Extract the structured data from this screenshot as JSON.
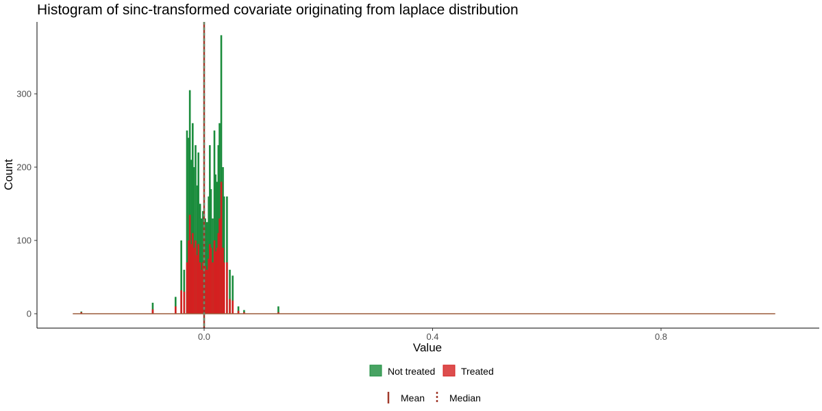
{
  "chart_data": {
    "type": "bar",
    "title": "Histogram of sinc-transformed covariate originating from laplace distribution",
    "xlabel": "Value",
    "ylabel": "Count",
    "xlim": [
      -0.29,
      1.02
    ],
    "ylim": [
      -20,
      395
    ],
    "x_ticks": [
      0.0,
      0.4,
      0.8
    ],
    "x_tick_labels": [
      "0.0",
      "0.4",
      "0.8"
    ],
    "y_ticks": [
      0,
      100,
      200,
      300
    ],
    "y_tick_labels": [
      "0",
      "100",
      "200",
      "300"
    ],
    "grid": false,
    "legend_position": "bottom",
    "series": [
      {
        "name": "Not treated",
        "color": "#1a8c3c",
        "x": [
          -0.215,
          -0.09,
          -0.05,
          -0.04,
          -0.035,
          -0.03,
          -0.027,
          -0.025,
          -0.022,
          -0.02,
          -0.018,
          -0.015,
          -0.012,
          -0.01,
          -0.007,
          -0.005,
          -0.002,
          0.002,
          0.005,
          0.008,
          0.01,
          0.012,
          0.015,
          0.018,
          0.02,
          0.023,
          0.025,
          0.027,
          0.03,
          0.033,
          0.035,
          0.04,
          0.045,
          0.05,
          0.06,
          0.07,
          0.13
        ],
        "values": [
          3,
          15,
          23,
          100,
          60,
          250,
          240,
          305,
          210,
          260,
          200,
          230,
          175,
          220,
          150,
          130,
          140,
          130,
          125,
          160,
          230,
          170,
          130,
          250,
          190,
          180,
          230,
          260,
          380,
          200,
          160,
          160,
          60,
          52,
          10,
          5,
          10
        ]
      },
      {
        "name": "Treated",
        "color": "#d42020",
        "x": [
          -0.215,
          -0.09,
          -0.05,
          -0.04,
          -0.035,
          -0.03,
          -0.027,
          -0.025,
          -0.022,
          -0.02,
          -0.018,
          -0.015,
          -0.012,
          -0.01,
          -0.007,
          -0.005,
          -0.002,
          0.002,
          0.005,
          0.008,
          0.01,
          0.012,
          0.015,
          0.018,
          0.02,
          0.023,
          0.025,
          0.027,
          0.03,
          0.033,
          0.035,
          0.04,
          0.045,
          0.05,
          0.06,
          0.07,
          0.13
        ],
        "values": [
          2,
          6,
          10,
          32,
          30,
          70,
          100,
          135,
          95,
          110,
          90,
          100,
          80,
          95,
          70,
          60,
          70,
          65,
          60,
          75,
          95,
          90,
          70,
          100,
          85,
          90,
          110,
          130,
          180,
          90,
          70,
          70,
          20,
          18,
          4,
          2,
          2
        ]
      }
    ],
    "vlines": [
      {
        "name": "Mean",
        "x": 0.0,
        "color": "#a0392a",
        "linetype": "solid"
      },
      {
        "name": "Median",
        "x": 0.0,
        "color": "#a0392a",
        "linetype": "dashed"
      }
    ]
  },
  "legend_fill": {
    "items": [
      {
        "label": "Not treated",
        "color": "#1a8c3c"
      },
      {
        "label": "Treated",
        "color": "#d42020"
      }
    ]
  },
  "legend_lines": {
    "items": [
      {
        "label": "Mean",
        "linetype": "solid",
        "color": "#a0392a"
      },
      {
        "label": "Median",
        "linetype": "dashed",
        "color": "#a0392a"
      }
    ]
  }
}
